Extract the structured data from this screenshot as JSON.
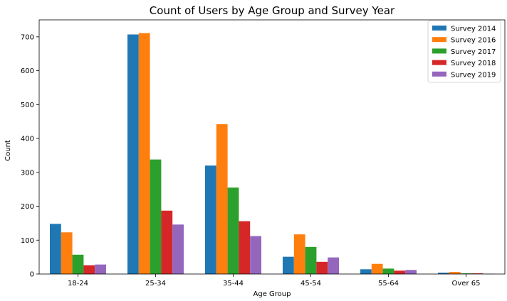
{
  "chart_data": {
    "type": "bar",
    "title": "Count of Users by Age Group and Survey Year",
    "xlabel": "Age Group",
    "ylabel": "Count",
    "ylim": [
      0,
      750
    ],
    "yticks": [
      0,
      100,
      200,
      300,
      400,
      500,
      600,
      700
    ],
    "grid": false,
    "legend_position": "top-right",
    "categories": [
      "18-24",
      "25-34",
      "35-44",
      "45-54",
      "55-64",
      "Over 65"
    ],
    "series": [
      {
        "name": "Survey 2014",
        "color": "#1f77b4",
        "values": [
          148,
          707,
          320,
          51,
          14,
          4
        ]
      },
      {
        "name": "Survey 2016",
        "color": "#ff7f0e",
        "values": [
          123,
          711,
          442,
          117,
          30,
          6
        ]
      },
      {
        "name": "Survey 2017",
        "color": "#2ca02c",
        "values": [
          57,
          338,
          255,
          80,
          16,
          2
        ]
      },
      {
        "name": "Survey 2018",
        "color": "#d62728",
        "values": [
          26,
          187,
          156,
          36,
          10,
          2
        ]
      },
      {
        "name": "Survey 2019",
        "color": "#9467bd",
        "values": [
          28,
          146,
          112,
          49,
          12,
          1
        ]
      }
    ]
  }
}
